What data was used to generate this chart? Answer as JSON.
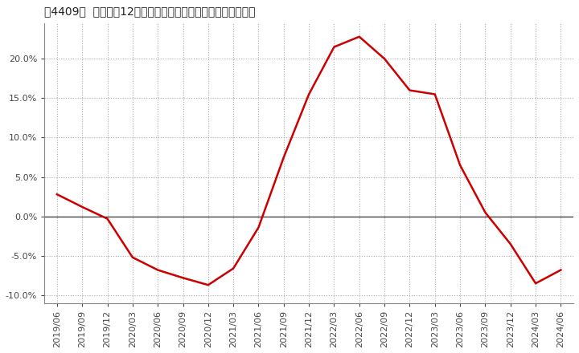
{
  "title": "［4409］  売上高の12か月移動合計の対前年同期増減率の推移",
  "line_color": "#cc0000",
  "background_color": "#ffffff",
  "plot_bg_color": "#ffffff",
  "grid_color": "#aaaaaa",
  "ylim": [
    -0.11,
    0.245
  ],
  "yticks": [
    -0.1,
    -0.05,
    0.0,
    0.05,
    0.1,
    0.15,
    0.2
  ],
  "dates": [
    "2019/06",
    "2019/09",
    "2019/12",
    "2020/03",
    "2020/06",
    "2020/09",
    "2020/12",
    "2021/03",
    "2021/06",
    "2021/09",
    "2021/12",
    "2022/03",
    "2022/06",
    "2022/09",
    "2022/12",
    "2023/03",
    "2023/06",
    "2023/09",
    "2023/12",
    "2024/03",
    "2024/06"
  ],
  "values": [
    0.028,
    0.012,
    -0.003,
    -0.052,
    -0.068,
    -0.078,
    -0.087,
    -0.066,
    -0.014,
    0.075,
    0.155,
    0.215,
    0.228,
    0.2,
    0.16,
    0.155,
    0.065,
    0.005,
    -0.035,
    -0.085,
    -0.068
  ],
  "title_fontsize": 11,
  "tick_fontsize": 8,
  "line_width": 1.8
}
